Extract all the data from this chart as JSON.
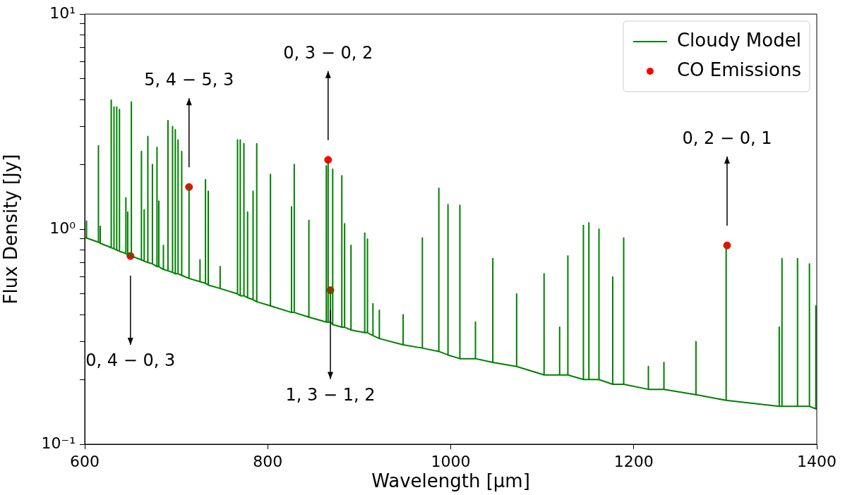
{
  "chart_data": {
    "type": "line",
    "xlabel": "Wavelength [μm]",
    "ylabel": "Flux Density [Jy]",
    "log": "y",
    "grid": false,
    "legend": "top right",
    "xlim": [
      600,
      1400
    ],
    "xticks": [
      600,
      800,
      1000,
      1200,
      1400
    ],
    "ylim": [
      0.1,
      10
    ],
    "yticks": [
      {
        "value": 0.1,
        "label": "10⁻¹"
      },
      {
        "value": 0.2,
        "label": null
      },
      {
        "value": 0.3,
        "label": null
      },
      {
        "value": 0.4,
        "label": null
      },
      {
        "value": 0.5,
        "label": null
      },
      {
        "value": 0.6,
        "label": null
      },
      {
        "value": 0.7,
        "label": null
      },
      {
        "value": 0.8,
        "label": null
      },
      {
        "value": 0.9,
        "label": null
      },
      {
        "value": 1,
        "label": "10⁰"
      },
      {
        "value": 2,
        "label": null
      },
      {
        "value": 3,
        "label": null
      },
      {
        "value": 4,
        "label": null
      },
      {
        "value": 5,
        "label": null
      },
      {
        "value": 6,
        "label": null
      },
      {
        "value": 7,
        "label": null
      },
      {
        "value": 8,
        "label": null
      },
      {
        "value": 9,
        "label": null
      },
      {
        "value": 10,
        "label": "10¹"
      }
    ],
    "series": [
      {
        "name": "Cloudy Model",
        "type": "line",
        "color": "#008000",
        "marker": "none",
        "line_style": "solid",
        "x": [
          600,
          602,
          602,
          602,
          615,
          615,
          615,
          617,
          617,
          617,
          629,
          629,
          629,
          632,
          632,
          632,
          635,
          635,
          635,
          638,
          638,
          638,
          645,
          645,
          645,
          647,
          647,
          647,
          651,
          651,
          651,
          662,
          662,
          662,
          665,
          665,
          665,
          669,
          669,
          669,
          674,
          674,
          674,
          679,
          679,
          679,
          681,
          681,
          681,
          686,
          686,
          686,
          691,
          691,
          691,
          696,
          696,
          696,
          699,
          699,
          699,
          702,
          702,
          702,
          706,
          706,
          706,
          714,
          714,
          714,
          726,
          726,
          726,
          732,
          732,
          732,
          735,
          735,
          735,
          748,
          748,
          748,
          767,
          767,
          767,
          770,
          770,
          770,
          774,
          774,
          774,
          778,
          778,
          778,
          784,
          784,
          784,
          788,
          788,
          788,
          803,
          803,
          803,
          826,
          826,
          826,
          829,
          829,
          829,
          845,
          845,
          845,
          864,
          864,
          864,
          866,
          866,
          866,
          868.5,
          868.5,
          868.5,
          871,
          871,
          871,
          881,
          881,
          881,
          884,
          884,
          884,
          891,
          891,
          891,
          906,
          906,
          906,
          909,
          909,
          909,
          915,
          915,
          915,
          922,
          922,
          922,
          948,
          948,
          948,
          969,
          969,
          969,
          987,
          987,
          987,
          997,
          997,
          997,
          1010,
          1010,
          1010,
          1027,
          1027,
          1027,
          1046,
          1046,
          1046,
          1072,
          1072,
          1072,
          1102,
          1102,
          1102,
          1119,
          1119,
          1119,
          1128,
          1128,
          1128,
          1145,
          1145,
          1145,
          1151,
          1151,
          1151,
          1162,
          1162,
          1162,
          1177,
          1177,
          1177,
          1189,
          1189,
          1189,
          1216,
          1216,
          1216,
          1233,
          1233,
          1233,
          1268,
          1268,
          1268,
          1301,
          1301,
          1301,
          1359,
          1359,
          1359,
          1362,
          1362,
          1362,
          1379,
          1379,
          1379,
          1392,
          1392,
          1392,
          1399,
          1399,
          1399,
          1400
        ],
        "values": [
          0.92,
          0.91,
          1.09,
          0.91,
          0.87,
          2.44,
          0.87,
          0.86,
          1.03,
          0.86,
          0.82,
          3.98,
          0.82,
          0.81,
          3.7,
          0.81,
          0.8,
          3.7,
          0.8,
          0.79,
          3.6,
          0.79,
          0.77,
          1.4,
          0.77,
          0.76,
          1.2,
          0.76,
          0.75,
          3.9,
          0.75,
          0.72,
          2.3,
          0.72,
          0.71,
          1.23,
          0.71,
          0.7,
          2.7,
          0.7,
          0.69,
          2,
          0.69,
          0.67,
          2.4,
          0.67,
          0.67,
          1.35,
          0.67,
          0.65,
          0.84,
          0.65,
          0.64,
          3.2,
          0.64,
          0.63,
          3,
          0.63,
          0.62,
          2.9,
          0.62,
          0.62,
          2.6,
          0.62,
          0.61,
          2.3,
          0.61,
          0.59,
          1.6,
          0.59,
          0.57,
          0.72,
          0.57,
          0.56,
          1.7,
          0.56,
          0.55,
          1.5,
          0.55,
          0.53,
          0.67,
          0.53,
          0.5,
          2.6,
          0.5,
          0.49,
          2.6,
          0.49,
          0.49,
          2.5,
          0.49,
          0.48,
          1.2,
          0.48,
          0.47,
          1.5,
          0.47,
          0.46,
          2.5,
          0.46,
          0.44,
          1.8,
          0.44,
          0.41,
          1.27,
          0.41,
          0.41,
          2,
          0.41,
          0.39,
          1.1,
          0.39,
          0.37,
          1.97,
          0.37,
          0.37,
          2.05,
          0.37,
          0.37,
          0.52,
          0.37,
          0.36,
          1.9,
          0.36,
          0.35,
          1.77,
          0.35,
          0.35,
          1.06,
          0.35,
          0.34,
          0.84,
          0.34,
          0.33,
          0.96,
          0.33,
          0.33,
          0.9,
          0.33,
          0.32,
          0.45,
          0.32,
          0.31,
          0.42,
          0.31,
          0.29,
          0.4,
          0.29,
          0.28,
          0.91,
          0.28,
          0.27,
          1.55,
          0.27,
          0.26,
          1.3,
          0.26,
          0.25,
          1.29,
          0.25,
          0.25,
          0.37,
          0.25,
          0.24,
          0.73,
          0.24,
          0.23,
          0.5,
          0.23,
          0.21,
          0.62,
          0.21,
          0.21,
          0.35,
          0.21,
          0.21,
          0.75,
          0.21,
          0.2,
          1.04,
          0.2,
          0.2,
          1.07,
          0.2,
          0.2,
          1,
          0.2,
          0.19,
          0.6,
          0.19,
          0.19,
          0.91,
          0.19,
          0.18,
          0.23,
          0.18,
          0.18,
          0.24,
          0.18,
          0.17,
          0.3,
          0.17,
          0.16,
          0.84,
          0.16,
          0.15,
          0.35,
          0.15,
          0.15,
          0.73,
          0.15,
          0.15,
          0.73,
          0.15,
          0.15,
          0.69,
          0.15,
          0.146,
          0.44,
          0.146,
          0.146
        ]
      },
      {
        "name": "CO Emissions",
        "type": "scatter",
        "color": "#ff0000",
        "marker": "circle",
        "x": [
          650,
          714,
          866,
          868.5,
          1302
        ],
        "values": [
          0.75,
          1.57,
          2.1,
          0.52,
          0.84
        ]
      }
    ],
    "annotations": [
      "0, 4 − 0, 3",
      "5, 4 − 5, 3",
      "0, 3 − 0, 2",
      "1, 3 − 1, 2",
      "0, 2 − 0, 1"
    ]
  }
}
